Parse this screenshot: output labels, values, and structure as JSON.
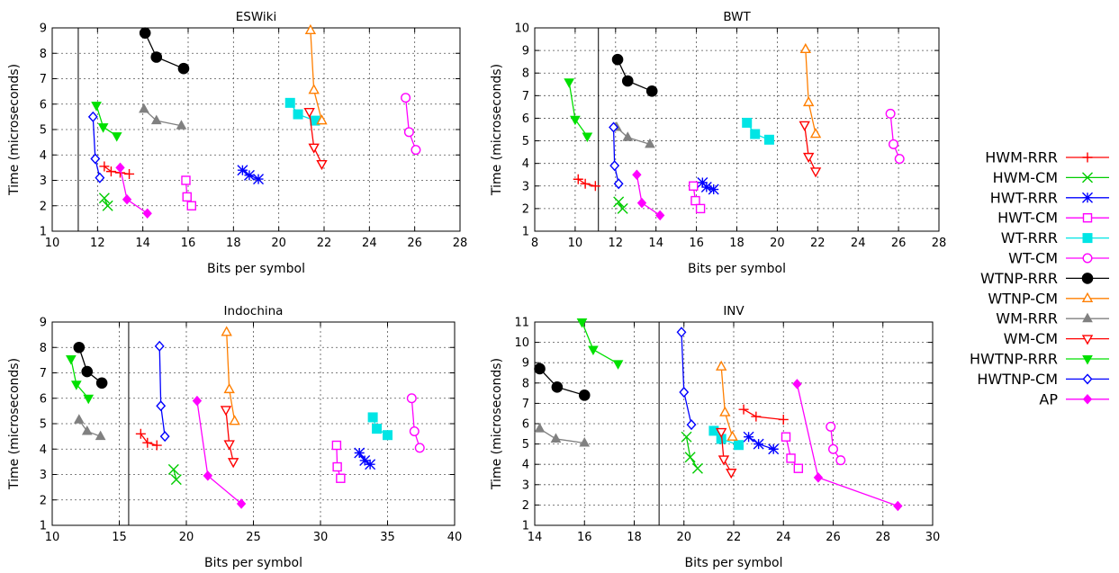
{
  "colors": {
    "HWM-RRR": "#ff0000",
    "HWM-CM": "#00cc00",
    "HWT-RRR": "#0000ff",
    "HWT-CM": "#ff00ff",
    "WT-RRR": "#00e5e5",
    "WT-CM": "#ff00ff",
    "WTNP-RRR": "#000000",
    "WTNP-CM": "#ff7f00",
    "WM-RRR": "#808080",
    "WM-CM": "#ff0000",
    "HWTNP-RRR": "#00e000",
    "HWTNP-CM": "#0000ff",
    "AP": "#ff00ff"
  },
  "legend": {
    "placement": "right",
    "entries": [
      {
        "name": "HWM-RRR",
        "marker": "plus"
      },
      {
        "name": "HWM-CM",
        "marker": "cross"
      },
      {
        "name": "HWT-RRR",
        "marker": "star"
      },
      {
        "name": "HWT-CM",
        "marker": "square-open"
      },
      {
        "name": "WT-RRR",
        "marker": "square-filled"
      },
      {
        "name": "WT-CM",
        "marker": "circle-open"
      },
      {
        "name": "WTNP-RRR",
        "marker": "circle-filled"
      },
      {
        "name": "WTNP-CM",
        "marker": "triangle-up-open"
      },
      {
        "name": "WM-RRR",
        "marker": "triangle-up-filled"
      },
      {
        "name": "WM-CM",
        "marker": "triangle-down-open"
      },
      {
        "name": "HWTNP-RRR",
        "marker": "triangle-down-filled"
      },
      {
        "name": "HWTNP-CM",
        "marker": "diamond-open"
      },
      {
        "name": "AP",
        "marker": "diamond-filled"
      }
    ]
  },
  "chart_data": [
    {
      "type": "line",
      "title": "ESWiki",
      "xlabel": "Bits per symbol",
      "ylabel": "Time (microseconds)",
      "xlim": [
        10,
        28
      ],
      "ylim": [
        1,
        9
      ],
      "xticks": [
        10,
        12,
        14,
        16,
        18,
        20,
        22,
        24,
        26,
        28
      ],
      "yticks": [
        1,
        2,
        3,
        4,
        5,
        6,
        7,
        8,
        9
      ],
      "grid": true,
      "vline": 11.15,
      "series": [
        {
          "name": "HWM-RRR",
          "points": [
            [
              12.3,
              3.55
            ],
            [
              12.6,
              3.35
            ],
            [
              13.0,
              3.3
            ],
            [
              13.4,
              3.25
            ]
          ]
        },
        {
          "name": "HWM-CM",
          "points": [
            [
              12.3,
              2.3
            ],
            [
              12.45,
              2.0
            ]
          ]
        },
        {
          "name": "HWT-RRR",
          "points": [
            [
              18.4,
              3.4
            ],
            [
              18.7,
              3.2
            ],
            [
              19.1,
              3.05
            ]
          ]
        },
        {
          "name": "HWT-CM",
          "points": [
            [
              15.9,
              3.0
            ],
            [
              15.95,
              2.35
            ],
            [
              16.15,
              2.0
            ]
          ]
        },
        {
          "name": "WT-RRR",
          "points": [
            [
              20.5,
              6.05
            ],
            [
              20.85,
              5.6
            ],
            [
              21.6,
              5.35
            ]
          ]
        },
        {
          "name": "WT-CM",
          "points": [
            [
              25.6,
              6.25
            ],
            [
              25.75,
              4.9
            ],
            [
              26.05,
              4.2
            ]
          ]
        },
        {
          "name": "WTNP-RRR",
          "points": [
            [
              14.1,
              8.8
            ],
            [
              14.6,
              7.85
            ],
            [
              15.8,
              7.4
            ]
          ]
        },
        {
          "name": "WTNP-CM",
          "points": [
            [
              21.4,
              8.9
            ],
            [
              21.55,
              6.55
            ],
            [
              21.9,
              5.35
            ]
          ]
        },
        {
          "name": "WM-RRR",
          "points": [
            [
              14.05,
              5.8
            ],
            [
              14.6,
              5.35
            ],
            [
              15.7,
              5.15
            ]
          ]
        },
        {
          "name": "WM-CM",
          "points": [
            [
              21.35,
              5.7
            ],
            [
              21.55,
              4.3
            ],
            [
              21.9,
              3.65
            ]
          ]
        },
        {
          "name": "HWTNP-RRR",
          "points": [
            [
              11.95,
              5.95
            ],
            [
              12.25,
              5.1
            ],
            [
              12.85,
              4.75
            ]
          ]
        },
        {
          "name": "HWTNP-CM",
          "points": [
            [
              11.8,
              5.5
            ],
            [
              11.9,
              3.85
            ],
            [
              12.1,
              3.1
            ]
          ]
        },
        {
          "name": "AP",
          "points": [
            [
              13.0,
              3.5
            ],
            [
              13.3,
              2.25
            ],
            [
              14.2,
              1.7
            ]
          ]
        }
      ]
    },
    {
      "type": "line",
      "title": "BWT",
      "xlabel": "Bits per symbol",
      "ylabel": "Time (microseconds)",
      "xlim": [
        8,
        28
      ],
      "ylim": [
        1,
        10
      ],
      "xticks": [
        8,
        10,
        12,
        14,
        16,
        18,
        20,
        22,
        24,
        26,
        28
      ],
      "yticks": [
        1,
        2,
        3,
        4,
        5,
        6,
        7,
        8,
        9,
        10
      ],
      "grid": true,
      "vline": 11.15,
      "series": [
        {
          "name": "HWM-RRR",
          "points": [
            [
              10.15,
              3.3
            ],
            [
              10.5,
              3.1
            ],
            [
              11.0,
              3.0
            ]
          ]
        },
        {
          "name": "HWM-CM",
          "points": [
            [
              12.15,
              2.3
            ],
            [
              12.35,
              2.0
            ]
          ]
        },
        {
          "name": "HWT-RRR",
          "points": [
            [
              16.3,
              3.15
            ],
            [
              16.5,
              2.95
            ],
            [
              16.85,
              2.85
            ]
          ]
        },
        {
          "name": "HWT-CM",
          "points": [
            [
              15.85,
              3.0
            ],
            [
              15.95,
              2.35
            ],
            [
              16.2,
              2.0
            ]
          ]
        },
        {
          "name": "WT-RRR",
          "points": [
            [
              18.5,
              5.8
            ],
            [
              18.9,
              5.3
            ],
            [
              19.6,
              5.05
            ]
          ]
        },
        {
          "name": "WT-CM",
          "points": [
            [
              25.6,
              6.2
            ],
            [
              25.75,
              4.85
            ],
            [
              26.05,
              4.2
            ]
          ]
        },
        {
          "name": "WTNP-RRR",
          "points": [
            [
              12.1,
              8.6
            ],
            [
              12.6,
              7.65
            ],
            [
              13.8,
              7.2
            ]
          ]
        },
        {
          "name": "WTNP-CM",
          "points": [
            [
              21.4,
              9.05
            ],
            [
              21.55,
              6.7
            ],
            [
              21.9,
              5.3
            ]
          ]
        },
        {
          "name": "WM-RRR",
          "points": [
            [
              12.05,
              5.6
            ],
            [
              12.6,
              5.15
            ],
            [
              13.7,
              4.85
            ]
          ]
        },
        {
          "name": "WM-CM",
          "points": [
            [
              21.35,
              5.7
            ],
            [
              21.55,
              4.3
            ],
            [
              21.9,
              3.65
            ]
          ]
        },
        {
          "name": "HWTNP-RRR",
          "points": [
            [
              9.7,
              7.6
            ],
            [
              10.0,
              5.95
            ],
            [
              10.6,
              5.2
            ]
          ]
        },
        {
          "name": "HWTNP-CM",
          "points": [
            [
              11.9,
              5.6
            ],
            [
              11.95,
              3.9
            ],
            [
              12.15,
              3.1
            ]
          ]
        },
        {
          "name": "AP",
          "points": [
            [
              13.05,
              3.5
            ],
            [
              13.3,
              2.25
            ],
            [
              14.2,
              1.7
            ]
          ]
        }
      ]
    },
    {
      "type": "line",
      "title": "Indochina",
      "xlabel": "Bits per symbol",
      "ylabel": "Time (microseconds)",
      "xlim": [
        10,
        40
      ],
      "ylim": [
        1,
        9
      ],
      "xticks": [
        10,
        15,
        20,
        25,
        30,
        35,
        40
      ],
      "yticks": [
        1,
        2,
        3,
        4,
        5,
        6,
        7,
        8,
        9
      ],
      "grid": true,
      "vline": 15.7,
      "series": [
        {
          "name": "HWM-RRR",
          "points": [
            [
              16.6,
              4.6
            ],
            [
              17.1,
              4.25
            ],
            [
              17.8,
              4.15
            ]
          ]
        },
        {
          "name": "HWM-CM",
          "points": [
            [
              19.05,
              3.2
            ],
            [
              19.25,
              2.8
            ]
          ]
        },
        {
          "name": "HWT-RRR",
          "points": [
            [
              32.9,
              3.85
            ],
            [
              33.3,
              3.55
            ],
            [
              33.7,
              3.4
            ]
          ]
        },
        {
          "name": "HWT-CM",
          "points": [
            [
              31.2,
              4.15
            ],
            [
              31.25,
              3.3
            ],
            [
              31.5,
              2.85
            ]
          ]
        },
        {
          "name": "WT-RRR",
          "points": [
            [
              33.9,
              5.25
            ],
            [
              34.2,
              4.8
            ],
            [
              35.0,
              4.55
            ]
          ]
        },
        {
          "name": "WT-CM",
          "points": [
            [
              36.8,
              6.0
            ],
            [
              37.0,
              4.7
            ],
            [
              37.4,
              4.05
            ]
          ]
        },
        {
          "name": "WTNP-RRR",
          "points": [
            [
              12.0,
              8.0
            ],
            [
              12.6,
              7.05
            ],
            [
              13.7,
              6.6
            ]
          ]
        },
        {
          "name": "WTNP-CM",
          "points": [
            [
              23.0,
              8.6
            ],
            [
              23.2,
              6.35
            ],
            [
              23.6,
              5.1
            ]
          ]
        },
        {
          "name": "WM-RRR",
          "points": [
            [
              12.0,
              5.15
            ],
            [
              12.6,
              4.7
            ],
            [
              13.6,
              4.5
            ]
          ]
        },
        {
          "name": "WM-CM",
          "points": [
            [
              22.95,
              5.55
            ],
            [
              23.2,
              4.2
            ],
            [
              23.5,
              3.5
            ]
          ]
        },
        {
          "name": "HWTNP-RRR",
          "points": [
            [
              11.4,
              7.55
            ],
            [
              11.8,
              6.55
            ],
            [
              12.7,
              6.0
            ]
          ]
        },
        {
          "name": "HWTNP-CM",
          "points": [
            [
              18.0,
              8.05
            ],
            [
              18.1,
              5.7
            ],
            [
              18.4,
              4.5
            ]
          ]
        },
        {
          "name": "AP",
          "points": [
            [
              20.8,
              5.9
            ],
            [
              21.6,
              2.95
            ],
            [
              24.1,
              1.85
            ]
          ]
        }
      ]
    },
    {
      "type": "line",
      "title": "INV",
      "xlabel": "Bits per symbol",
      "ylabel": "Time (microseconds)",
      "xlim": [
        14,
        30
      ],
      "ylim": [
        1,
        11
      ],
      "xticks": [
        14,
        16,
        18,
        20,
        22,
        24,
        26,
        28,
        30
      ],
      "yticks": [
        1,
        2,
        3,
        4,
        5,
        6,
        7,
        8,
        9,
        10,
        11
      ],
      "grid": true,
      "vline": 19.0,
      "series": [
        {
          "name": "HWM-RRR",
          "points": [
            [
              22.4,
              6.7
            ],
            [
              22.9,
              6.35
            ],
            [
              24.0,
              6.2
            ]
          ]
        },
        {
          "name": "HWM-CM",
          "points": [
            [
              20.1,
              5.35
            ],
            [
              20.25,
              4.35
            ],
            [
              20.55,
              3.8
            ]
          ]
        },
        {
          "name": "HWT-RRR",
          "points": [
            [
              22.6,
              5.35
            ],
            [
              23.0,
              5.0
            ],
            [
              23.6,
              4.75
            ]
          ]
        },
        {
          "name": "HWT-CM",
          "points": [
            [
              24.1,
              5.35
            ],
            [
              24.3,
              4.3
            ],
            [
              24.6,
              3.8
            ]
          ]
        },
        {
          "name": "WT-RRR",
          "points": [
            [
              21.2,
              5.65
            ],
            [
              21.5,
              5.25
            ],
            [
              22.2,
              4.95
            ]
          ]
        },
        {
          "name": "WT-CM",
          "points": [
            [
              25.9,
              5.85
            ],
            [
              26.0,
              4.75
            ],
            [
              26.3,
              4.2
            ]
          ]
        },
        {
          "name": "WTNP-RRR",
          "points": [
            [
              14.2,
              8.7
            ],
            [
              14.9,
              7.8
            ],
            [
              16.0,
              7.4
            ]
          ]
        },
        {
          "name": "WTNP-CM",
          "points": [
            [
              21.5,
              8.8
            ],
            [
              21.65,
              6.55
            ],
            [
              21.95,
              5.35
            ]
          ]
        },
        {
          "name": "WM-RRR",
          "points": [
            [
              14.2,
              5.75
            ],
            [
              14.85,
              5.25
            ],
            [
              16.0,
              5.05
            ]
          ]
        },
        {
          "name": "WM-CM",
          "points": [
            [
              21.5,
              5.6
            ],
            [
              21.6,
              4.25
            ],
            [
              21.9,
              3.6
            ]
          ]
        },
        {
          "name": "HWTNP-RRR",
          "points": [
            [
              15.9,
              11.0
            ],
            [
              16.35,
              9.65
            ],
            [
              17.35,
              8.95
            ]
          ]
        },
        {
          "name": "HWTNP-CM",
          "points": [
            [
              19.9,
              10.5
            ],
            [
              20.0,
              7.55
            ],
            [
              20.3,
              5.95
            ]
          ]
        },
        {
          "name": "AP",
          "points": [
            [
              24.55,
              7.95
            ],
            [
              25.4,
              3.35
            ],
            [
              28.6,
              1.95
            ]
          ]
        }
      ]
    }
  ]
}
